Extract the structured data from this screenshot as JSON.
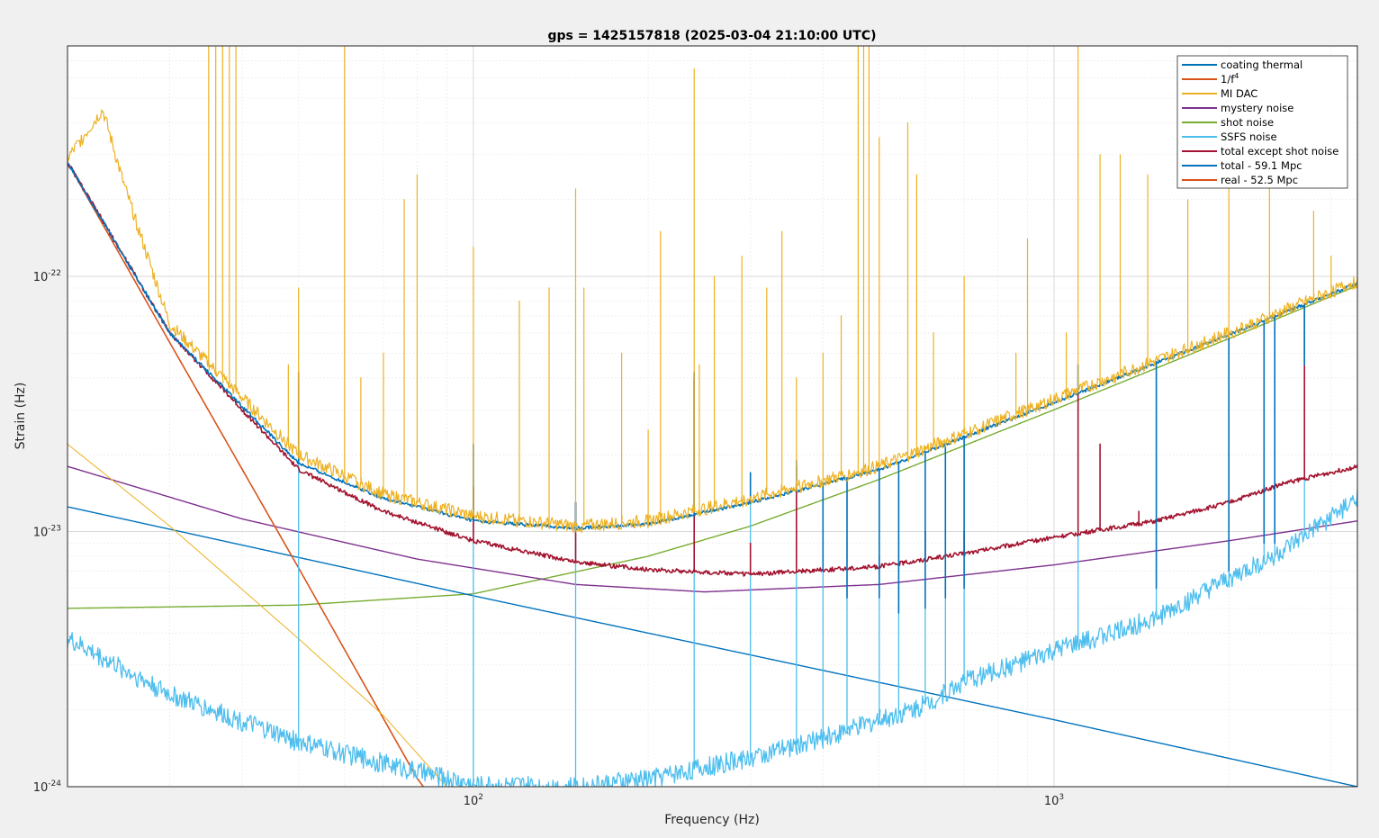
{
  "chart_data": {
    "type": "line",
    "title": "gps = 1425157818 (2025-03-04 21:10:00 UTC)",
    "xlabel": "Frequency (Hz)",
    "ylabel": "Strain (Hz)",
    "xscale": "log",
    "yscale": "log",
    "xlim": [
      20,
      3330
    ],
    "ylim": [
      1e-24,
      8e-22
    ],
    "grid": true,
    "minor_grid": true,
    "legend_position": "top-right",
    "x_ticks": [
      {
        "value": 100,
        "base": "10",
        "exp": "2"
      },
      {
        "value": 1000,
        "base": "10",
        "exp": "3"
      }
    ],
    "y_ticks": [
      {
        "value": 1e-24,
        "base": "10",
        "exp": "-24"
      },
      {
        "value": 1e-23,
        "base": "10",
        "exp": "-23"
      },
      {
        "value": 1e-22,
        "base": "10",
        "exp": "-22"
      }
    ],
    "series": [
      {
        "name": "coating thermal",
        "color": "#0072bd",
        "points": [
          [
            20,
            1.25e-23
          ],
          [
            100,
            5.6e-24
          ],
          [
            1000,
            1.83e-24
          ],
          [
            3330,
            1e-24
          ]
        ]
      },
      {
        "name": "1/f",
        "name_sup": "4",
        "color": "#d95319",
        "points": [
          [
            20,
            2.8e-22
          ],
          [
            30,
            5.5e-23
          ],
          [
            50,
            7.2e-24
          ],
          [
            70,
            1.85e-24
          ],
          [
            80,
            1.08e-24
          ],
          [
            82,
            1e-24
          ]
        ]
      },
      {
        "name": "MI DAC",
        "color": "#edb120",
        "points": [
          [
            20,
            2.2e-23
          ],
          [
            30,
            1.05e-23
          ],
          [
            50,
            3.8e-24
          ],
          [
            70,
            1.9e-24
          ],
          [
            90,
            1e-24
          ]
        ]
      },
      {
        "name": "mystery noise",
        "color": "#7e2f8e",
        "points": [
          [
            20,
            1.8e-23
          ],
          [
            40,
            1.12e-23
          ],
          [
            80,
            7.8e-24
          ],
          [
            150,
            6.2e-24
          ],
          [
            250,
            5.8e-24
          ],
          [
            500,
            6.2e-24
          ],
          [
            1000,
            7.4e-24
          ],
          [
            2000,
            9.2e-24
          ],
          [
            3330,
            1.1e-23
          ]
        ]
      },
      {
        "name": "shot noise",
        "color": "#77ac30",
        "points": [
          [
            20,
            5e-24
          ],
          [
            50,
            5.15e-24
          ],
          [
            100,
            5.7e-24
          ],
          [
            200,
            8e-24
          ],
          [
            300,
            1.05e-23
          ],
          [
            500,
            1.6e-23
          ],
          [
            1000,
            3e-23
          ],
          [
            2000,
            5.7e-23
          ],
          [
            3330,
            9.2e-23
          ]
        ]
      },
      {
        "name": "SSFS noise",
        "color": "#4dbeee",
        "points": [
          [
            20,
            3.8e-24
          ],
          [
            30,
            2.3e-24
          ],
          [
            50,
            1.5e-24
          ],
          [
            80,
            1.15e-24
          ],
          [
            100,
            1.02e-24
          ],
          [
            150,
            1e-24
          ],
          [
            200,
            1.08e-24
          ],
          [
            300,
            1.3e-24
          ],
          [
            400,
            1.55e-24
          ],
          [
            600,
            2.1e-24
          ],
          [
            700,
            2.6e-24
          ],
          [
            1000,
            3.4e-24
          ],
          [
            1500,
            4.6e-24
          ],
          [
            2000,
            6.5e-24
          ],
          [
            2500,
            8.5e-24
          ],
          [
            3330,
            1.35e-23
          ]
        ]
      },
      {
        "name": "total except shot noise",
        "color": "#a2142f",
        "points": [
          [
            20,
            2.8e-22
          ],
          [
            30,
            6e-23
          ],
          [
            50,
            1.75e-23
          ],
          [
            70,
            1.2e-23
          ],
          [
            100,
            9.2e-24
          ],
          [
            150,
            7.6e-24
          ],
          [
            200,
            7.1e-24
          ],
          [
            300,
            6.8e-24
          ],
          [
            500,
            7.3e-24
          ],
          [
            700,
            8.2e-24
          ],
          [
            1000,
            9.5e-24
          ],
          [
            1500,
            1.1e-23
          ],
          [
            2000,
            1.3e-23
          ],
          [
            2500,
            1.55e-23
          ],
          [
            3330,
            1.8e-23
          ]
        ]
      },
      {
        "name": "total - 59.1 Mpc",
        "color": "#0072bd",
        "points": [
          [
            20,
            2.8e-22
          ],
          [
            30,
            6e-23
          ],
          [
            50,
            1.85e-23
          ],
          [
            70,
            1.35e-23
          ],
          [
            100,
            1.1e-23
          ],
          [
            150,
            1.03e-23
          ],
          [
            200,
            1.07e-23
          ],
          [
            300,
            1.3e-23
          ],
          [
            500,
            1.75e-23
          ],
          [
            1000,
            3.2e-23
          ],
          [
            2000,
            5.9e-23
          ],
          [
            3330,
            9.4e-23
          ]
        ]
      },
      {
        "name": "real - 52.5 Mpc",
        "color": "#d95319",
        "points": [
          [
            20,
            2.9e-22
          ],
          [
            23,
            4.5e-22
          ],
          [
            25,
            2.3e-22
          ],
          [
            30,
            6.5e-23
          ],
          [
            50,
            2e-23
          ],
          [
            70,
            1.4e-23
          ],
          [
            100,
            1.15e-23
          ],
          [
            150,
            1.05e-23
          ],
          [
            200,
            1.1e-23
          ],
          [
            300,
            1.35e-23
          ],
          [
            500,
            1.8e-23
          ],
          [
            1000,
            3.3e-23
          ],
          [
            2000,
            6e-23
          ],
          [
            3330,
            9.6e-23
          ]
        ]
      }
    ],
    "overlay_real_color": "#edb120",
    "spectral_lines": {
      "mi_dac": [
        [
          35,
          8e-22
        ],
        [
          36,
          8e-22
        ],
        [
          37,
          8e-22
        ],
        [
          38,
          8e-22
        ],
        [
          39,
          8e-22
        ],
        [
          48,
          4.5e-23
        ],
        [
          50,
          9e-23
        ],
        [
          60,
          8e-22
        ],
        [
          64,
          4e-23
        ],
        [
          70,
          5e-23
        ],
        [
          76,
          2e-22
        ],
        [
          80,
          2.5e-22
        ],
        [
          100,
          1.3e-22
        ],
        [
          120,
          8e-23
        ],
        [
          135,
          9e-23
        ],
        [
          150,
          2.2e-22
        ],
        [
          155,
          9e-23
        ],
        [
          180,
          5e-23
        ],
        [
          200,
          2.5e-23
        ],
        [
          210,
          1.5e-22
        ],
        [
          240,
          6.5e-22
        ],
        [
          245,
          4.5e-23
        ],
        [
          260,
          1e-22
        ],
        [
          290,
          1.2e-22
        ],
        [
          320,
          9e-23
        ],
        [
          340,
          1.5e-22
        ],
        [
          360,
          4e-23
        ],
        [
          400,
          5e-23
        ],
        [
          430,
          7e-23
        ],
        [
          460,
          8e-22
        ],
        [
          470,
          8e-22
        ],
        [
          480,
          8e-22
        ],
        [
          500,
          3.5e-22
        ],
        [
          560,
          4e-22
        ],
        [
          580,
          2.5e-22
        ],
        [
          620,
          6e-23
        ],
        [
          700,
          1e-22
        ],
        [
          860,
          5e-23
        ],
        [
          900,
          1.4e-22
        ],
        [
          1050,
          6e-23
        ],
        [
          1100,
          8e-22
        ],
        [
          1200,
          3e-22
        ],
        [
          1300,
          3e-22
        ],
        [
          1450,
          2.5e-22
        ],
        [
          1700,
          2e-22
        ],
        [
          2000,
          2.2e-22
        ],
        [
          2350,
          2.5e-22
        ],
        [
          2800,
          1.8e-22
        ],
        [
          3000,
          1.2e-22
        ]
      ],
      "ssfs": [
        [
          50,
          4.2e-23
        ],
        [
          100,
          2.2e-23
        ],
        [
          150,
          1.3e-23
        ],
        [
          240,
          4.2e-23
        ],
        [
          300,
          1.7e-23
        ],
        [
          360,
          1.9e-23
        ],
        [
          400,
          7e-24
        ],
        [
          440,
          5.5e-24
        ],
        [
          500,
          5.5e-24
        ],
        [
          540,
          4.8e-24
        ],
        [
          600,
          5e-24
        ],
        [
          650,
          5.5e-24
        ],
        [
          700,
          6e-24
        ],
        [
          1100,
          4.5e-23
        ],
        [
          1500,
          6e-24
        ],
        [
          2000,
          7e-24
        ],
        [
          2300,
          9e-24
        ],
        [
          2400,
          9e-24
        ],
        [
          2700,
          4.5e-23
        ]
      ],
      "total_except_shot": [
        [
          100,
          1.5e-23
        ],
        [
          150,
          1.3e-23
        ],
        [
          240,
          4e-23
        ],
        [
          300,
          9e-24
        ],
        [
          360,
          1.8e-23
        ],
        [
          500,
          8e-24
        ],
        [
          600,
          1e-23
        ],
        [
          700,
          1e-23
        ],
        [
          1100,
          4.5e-23
        ],
        [
          1200,
          2.2e-23
        ],
        [
          1400,
          1.2e-23
        ],
        [
          2700,
          7.5e-23
        ],
        [
          3330,
          2.2e-23
        ]
      ]
    }
  }
}
